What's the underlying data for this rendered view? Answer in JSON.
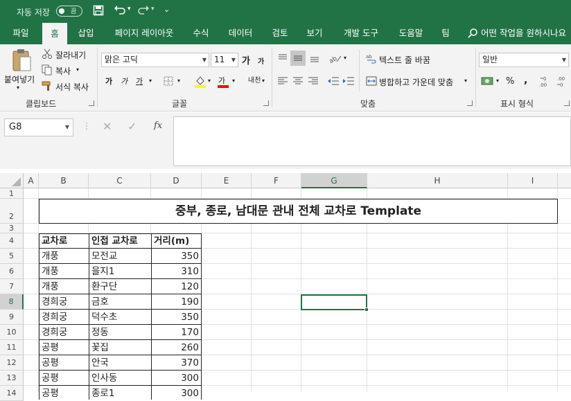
{
  "titlebar": {
    "autosave_label": "자동 저장",
    "autosave_state": "끔"
  },
  "tabs": [
    "파일",
    "홈",
    "삽입",
    "페이지 레이아웃",
    "수식",
    "데이터",
    "검토",
    "보기",
    "개발 도구",
    "도움말",
    "팀"
  ],
  "tell_me": "어떤 작업을 원하시나요",
  "ribbon": {
    "clipboard": {
      "paste": "붙여넣기",
      "cut": "잘라내기",
      "copy": "복사",
      "format_painter": "서식 복사",
      "label": "클립보드"
    },
    "font": {
      "name": "맑은 고딕",
      "size": "11",
      "grow": "가",
      "shrink": "가",
      "bold": "가",
      "italic": "가",
      "underline": "가",
      "font_color": "가",
      "phonetic": "내천",
      "label": "글꼴"
    },
    "alignment": {
      "wrap": "텍스트 줄 바꿈",
      "merge": "병합하고 가운데 맞춤",
      "label": "맞춤"
    },
    "number": {
      "format": "일반",
      "label": "표시 형식"
    }
  },
  "formula_bar": {
    "name_box": "G8",
    "fx": "fx",
    "formula": ""
  },
  "colors": {
    "excel_green": "#217346",
    "ribbon_bg": "#f3f3f3",
    "fill_yellow": "#ffff00",
    "font_red": "#ff0000"
  },
  "sheet": {
    "columns": [
      "A",
      "B",
      "C",
      "D",
      "E",
      "F",
      "G",
      "H",
      "I"
    ],
    "rows": [
      "1",
      "2",
      "3",
      "4",
      "5",
      "6",
      "7",
      "8",
      "9",
      "10",
      "11",
      "12",
      "13",
      "14"
    ],
    "selected_cell": "G8",
    "title": "중부, 종로, 남대문 관내 전체 교차로 Template",
    "headers": [
      "교차로",
      "인접 교차로",
      "거리(m)"
    ],
    "data": [
      [
        "개풍",
        "모전교",
        "350"
      ],
      [
        "개풍",
        "을지1",
        "310"
      ],
      [
        "개풍",
        "환구단",
        "120"
      ],
      [
        "경희궁",
        "금호",
        "190"
      ],
      [
        "경희궁",
        "덕수초",
        "350"
      ],
      [
        "경희궁",
        "정동",
        "170"
      ],
      [
        "공평",
        "꽃집",
        "260"
      ],
      [
        "공평",
        "안국",
        "370"
      ],
      [
        "공평",
        "인사동",
        "300"
      ],
      [
        "공평",
        "종로1",
        "300"
      ]
    ]
  }
}
